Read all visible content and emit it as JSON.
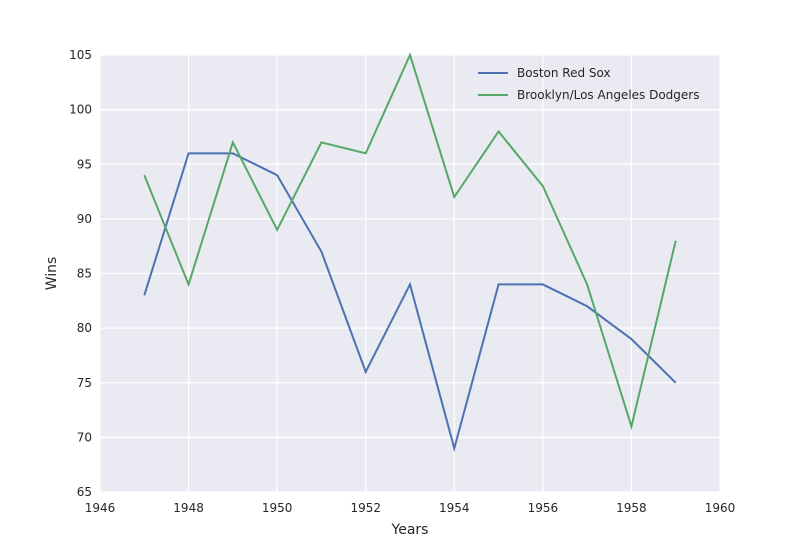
{
  "chart_data": {
    "type": "line",
    "x": [
      1947,
      1948,
      1949,
      1950,
      1951,
      1952,
      1953,
      1954,
      1955,
      1956,
      1957,
      1958,
      1959
    ],
    "series": [
      {
        "name": "Boston Red Sox",
        "color": "#4c72b0",
        "values": [
          83,
          96,
          96,
          94,
          87,
          76,
          84,
          69,
          84,
          84,
          82,
          79,
          75
        ]
      },
      {
        "name": "Brooklyn/Los Angeles Dodgers",
        "color": "#55a868",
        "values": [
          94,
          84,
          97,
          89,
          97,
          96,
          105,
          92,
          98,
          93,
          84,
          71,
          88
        ]
      }
    ],
    "xlabel": "Years",
    "ylabel": "Wins",
    "xlim": [
      1946,
      1960
    ],
    "ylim": [
      65,
      105
    ],
    "xticks": [
      1946,
      1948,
      1950,
      1952,
      1954,
      1956,
      1958,
      1960
    ],
    "yticks": [
      65,
      70,
      75,
      80,
      85,
      90,
      95,
      100,
      105
    ],
    "grid": true,
    "legend_position": "top-right",
    "background_color": "#eaeaf2",
    "grid_color": "#ffffff"
  }
}
